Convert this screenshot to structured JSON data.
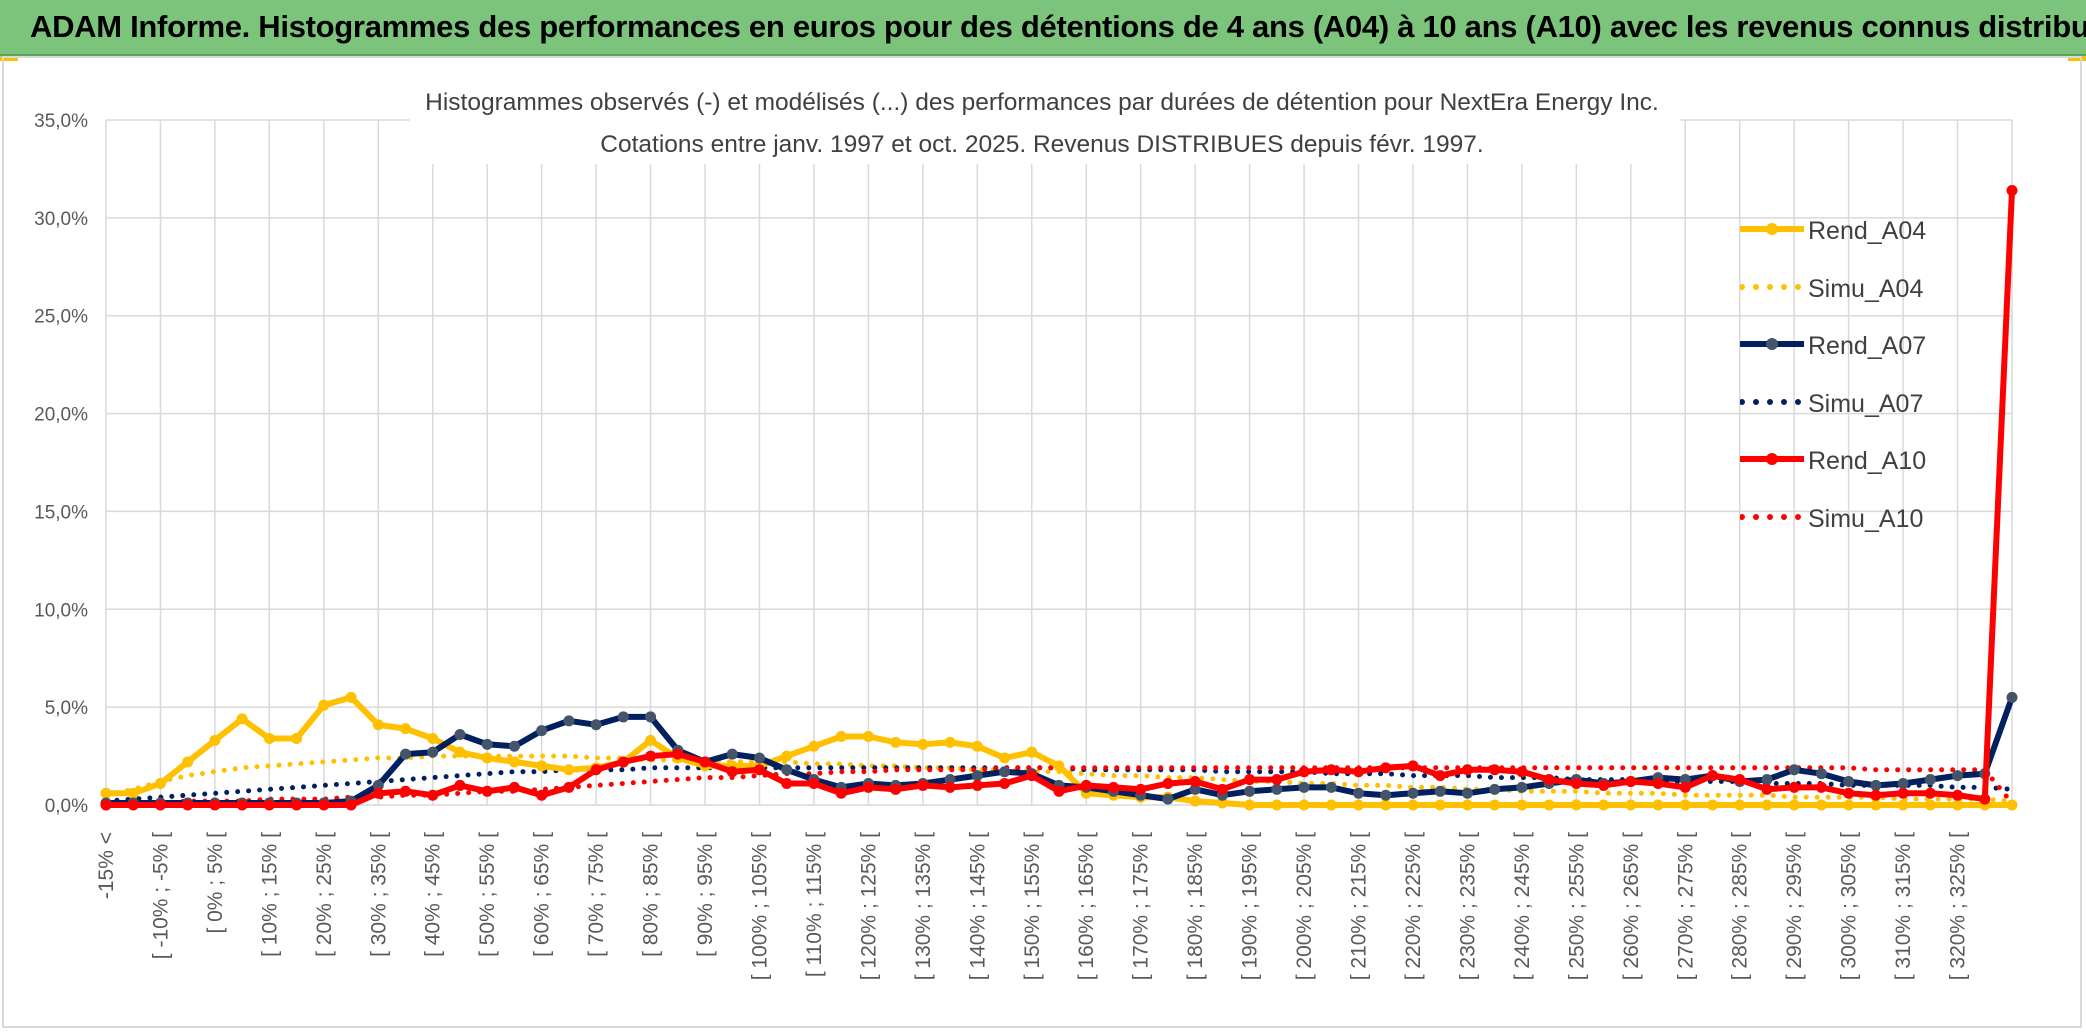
{
  "banner": {
    "title": "ADAM Informe. Histogrammes des performances en euros pour des détentions de 4 ans (A04) à 10 ans (A10) avec les revenus connus distribués",
    "background": "#7cc47c"
  },
  "chart_data": {
    "type": "line",
    "title": "Histogrammes observés (-) et modélisés (...) des performances par durées de détention pour NextEra Energy Inc.",
    "subtitle": "Cotations entre janv. 1997 et oct. 2025. Revenus DISTRIBUES depuis févr. 1997.",
    "xlabel": "",
    "ylabel": "",
    "ylim": [
      0,
      35
    ],
    "y_ticks": [
      "0,0%",
      "5,0%",
      "10,0%",
      "15,0%",
      "20,0%",
      "25,0%",
      "30,0%",
      "35,0%"
    ],
    "grid": true,
    "legend_position": "right",
    "categories": [
      "-15% <",
      "[ -15% ; -10% [",
      "[ -10% ; -5% [",
      "[ -5% ; 0% [",
      "[ 0% ; 5% [",
      "[ 5% ; 10% [",
      "[ 10% ; 15% [",
      "[ 15% ; 20% [",
      "[ 20% ; 25% [",
      "[ 25% ; 30% [",
      "[ 30% ; 35% [",
      "[ 35% ; 40% [",
      "[ 40% ; 45% [",
      "[ 45% ; 50% [",
      "[ 50% ; 55% [",
      "[ 55% ; 60% [",
      "[ 60% ; 65% [",
      "[ 65% ; 70% [",
      "[ 70% ; 75% [",
      "[ 75% ; 80% [",
      "[ 80% ; 85% [",
      "[ 85% ; 90% [",
      "[ 90% ; 95% [",
      "[ 95% ; 100% [",
      "[ 100% ; 105% [",
      "[ 105% ; 110% [",
      "[ 110% ; 115% [",
      "[ 115% ; 120% [",
      "[ 120% ; 125% [",
      "[ 125% ; 130% [",
      "[ 130% ; 135% [",
      "[ 135% ; 140% [",
      "[ 140% ; 145% [",
      "[ 145% ; 150% [",
      "[ 150% ; 155% [",
      "[ 155% ; 160% [",
      "[ 160% ; 165% [",
      "[ 165% ; 170% [",
      "[ 170% ; 175% [",
      "[ 175% ; 180% [",
      "[ 180% ; 185% [",
      "[ 185% ; 190% [",
      "[ 190% ; 195% [",
      "[ 195% ; 200% [",
      "[ 200% ; 205% [",
      "[ 205% ; 210% [",
      "[ 210% ; 215% [",
      "[ 215% ; 220% [",
      "[ 220% ; 225% [",
      "[ 225% ; 230% [",
      "[ 230% ; 235% [",
      "[ 235% ; 240% [",
      "[ 240% ; 245% [",
      "[ 245% ; 250% [",
      "[ 250% ; 255% [",
      "[ 255% ; 260% [",
      "[ 260% ; 265% [",
      "[ 265% ; 270% [",
      "[ 270% ; 275% [",
      "[ 275% ; 280% [",
      "[ 280% ; 285% [",
      "[ 285% ; 290% [",
      "[ 290% ; 295% [",
      "[ 295% ; 300% [",
      "[ 300% ; 305% [",
      "[ 305% ; 310% [",
      "[ 310% ; 315% [",
      "[ 315% ; 320% [",
      "[ 320% ; 325% [",
      "[ 325% ; 330% [",
      "330% <"
    ],
    "visible_tick_labels": [
      "-15% <",
      "[ -10% ; -5% [",
      "[ 0% ; 5% [",
      "[ 10% ; 15% [",
      "[ 20% ; 25% [",
      "[ 30% ; 35% [",
      "[ 40% ; 45% [",
      "[ 50% ; 55% [",
      "[ 60% ; 65% [",
      "[ 70% ; 75% [",
      "[ 80% ; 85% [",
      "[ 90% ; 95% [",
      "[ 100% ; 105% [",
      "[ 110% ; 115% [",
      "[ 120% ; 125% [",
      "[ 130% ; 135% [",
      "[ 140% ; 145% [",
      "[ 150% ; 155% [",
      "[ 160% ; 165% [",
      "[ 170% ; 175% [",
      "[ 180% ; 185% [",
      "[ 190% ; 195% [",
      "[ 200% ; 205% [",
      "[ 210% ; 215% [",
      "[ 220% ; 225% [",
      "[ 230% ; 235% [",
      "[ 240% ; 245% [",
      "[ 250% ; 255% [",
      "[ 260% ; 265% [",
      "[ 270% ; 275% [",
      "[ 280% ; 285% [",
      "[ 290% ; 295% [",
      "[ 300% ; 305% [",
      "[ 310% ; 315% [",
      "[ 320% ; 325% ["
    ],
    "series": [
      {
        "name": "Rend_A04",
        "style": "solid",
        "color": "#ffc000",
        "values": [
          0.6,
          0.6,
          1.1,
          2.2,
          3.3,
          4.4,
          3.4,
          3.4,
          5.1,
          5.5,
          4.1,
          3.9,
          3.4,
          2.7,
          2.4,
          2.2,
          2.0,
          1.8,
          1.9,
          2.2,
          3.3,
          2.4,
          2.0,
          2.0,
          2.0,
          2.5,
          3.0,
          3.5,
          3.5,
          3.2,
          3.1,
          3.2,
          3.0,
          2.4,
          2.7,
          2.0,
          0.6,
          0.5,
          0.4,
          0.4,
          0.2,
          0.1,
          0.0,
          0.0,
          0.0,
          0.0,
          0.0,
          0.0,
          0.0,
          0.0,
          0.0,
          0.0,
          0.0,
          0.0,
          0.0,
          0.0,
          0.0,
          0.0,
          0.0,
          0.0,
          0.0,
          0.0,
          0.0,
          0.0,
          0.0,
          0.0,
          0.0,
          0.0,
          0.0,
          0.0,
          0.0
        ]
      },
      {
        "name": "Simu_A04",
        "style": "dotted",
        "color": "#ffc000",
        "values": [
          0.5,
          0.8,
          1.2,
          1.5,
          1.7,
          1.9,
          2.0,
          2.1,
          2.2,
          2.3,
          2.4,
          2.4,
          2.5,
          2.5,
          2.5,
          2.5,
          2.5,
          2.5,
          2.4,
          2.4,
          2.3,
          2.3,
          2.3,
          2.2,
          2.2,
          2.2,
          2.1,
          2.1,
          2.0,
          2.0,
          1.9,
          1.9,
          1.8,
          1.8,
          1.7,
          1.7,
          1.6,
          1.5,
          1.5,
          1.4,
          1.4,
          1.3,
          1.2,
          1.2,
          1.1,
          1.1,
          1.0,
          1.0,
          0.9,
          0.9,
          0.8,
          0.8,
          0.7,
          0.7,
          0.7,
          0.6,
          0.6,
          0.6,
          0.5,
          0.5,
          0.5,
          0.5,
          0.4,
          0.4,
          0.4,
          0.4,
          0.3,
          0.3,
          0.3,
          0.3,
          0.2
        ]
      },
      {
        "name": "Rend_A07",
        "style": "solid",
        "color": "#002060",
        "values": [
          0.1,
          0.1,
          0.1,
          0.1,
          0.1,
          0.1,
          0.1,
          0.1,
          0.1,
          0.2,
          1.0,
          2.6,
          2.7,
          3.6,
          3.1,
          3.0,
          3.8,
          4.3,
          4.1,
          4.5,
          4.5,
          2.8,
          2.2,
          2.6,
          2.4,
          1.8,
          1.3,
          0.9,
          1.1,
          1.0,
          1.1,
          1.3,
          1.5,
          1.7,
          1.6,
          1.0,
          0.9,
          0.7,
          0.5,
          0.3,
          0.8,
          0.5,
          0.7,
          0.8,
          0.9,
          0.9,
          0.6,
          0.5,
          0.6,
          0.7,
          0.6,
          0.8,
          0.9,
          1.1,
          1.3,
          1.1,
          1.2,
          1.4,
          1.3,
          1.5,
          1.2,
          1.3,
          1.8,
          1.6,
          1.2,
          1.0,
          1.1,
          1.3,
          1.5,
          1.6,
          5.5
        ]
      },
      {
        "name": "Simu_A07",
        "style": "dotted",
        "color": "#002060",
        "values": [
          0.2,
          0.3,
          0.4,
          0.5,
          0.6,
          0.7,
          0.8,
          0.9,
          1.0,
          1.1,
          1.2,
          1.3,
          1.4,
          1.5,
          1.6,
          1.7,
          1.7,
          1.8,
          1.8,
          1.8,
          1.9,
          1.9,
          1.9,
          1.9,
          1.9,
          1.9,
          1.9,
          1.9,
          1.9,
          1.9,
          1.9,
          1.9,
          1.9,
          1.9,
          1.9,
          1.9,
          1.8,
          1.8,
          1.8,
          1.8,
          1.8,
          1.7,
          1.7,
          1.7,
          1.7,
          1.6,
          1.6,
          1.6,
          1.5,
          1.5,
          1.5,
          1.4,
          1.4,
          1.4,
          1.3,
          1.3,
          1.3,
          1.2,
          1.2,
          1.2,
          1.2,
          1.1,
          1.1,
          1.1,
          1.0,
          1.0,
          1.0,
          1.0,
          0.9,
          0.9,
          0.8
        ]
      },
      {
        "name": "Rend_A10",
        "style": "solid",
        "color": "#ff0000",
        "values": [
          0.0,
          0.0,
          0.0,
          0.0,
          0.0,
          0.0,
          0.0,
          0.0,
          0.0,
          0.0,
          0.6,
          0.7,
          0.5,
          1.0,
          0.7,
          0.9,
          0.5,
          0.9,
          1.8,
          2.2,
          2.5,
          2.6,
          2.2,
          1.7,
          1.8,
          1.1,
          1.1,
          0.6,
          0.9,
          0.8,
          1.0,
          0.9,
          1.0,
          1.1,
          1.5,
          0.7,
          1.0,
          0.9,
          0.8,
          1.1,
          1.2,
          0.8,
          1.3,
          1.3,
          1.7,
          1.8,
          1.7,
          1.9,
          2.0,
          1.5,
          1.8,
          1.8,
          1.7,
          1.3,
          1.1,
          1.0,
          1.2,
          1.1,
          0.9,
          1.5,
          1.3,
          0.8,
          0.9,
          0.9,
          0.6,
          0.5,
          0.6,
          0.6,
          0.5,
          0.3,
          31.4
        ]
      },
      {
        "name": "Simu_A10",
        "style": "dotted",
        "color": "#ff0000",
        "values": [
          0.1,
          0.1,
          0.1,
          0.2,
          0.2,
          0.2,
          0.3,
          0.3,
          0.3,
          0.4,
          0.4,
          0.5,
          0.5,
          0.6,
          0.7,
          0.7,
          0.8,
          0.9,
          1.0,
          1.1,
          1.2,
          1.3,
          1.4,
          1.4,
          1.5,
          1.6,
          1.6,
          1.7,
          1.7,
          1.8,
          1.8,
          1.8,
          1.8,
          1.9,
          1.9,
          1.9,
          1.9,
          1.9,
          1.9,
          1.9,
          1.9,
          1.9,
          1.9,
          1.9,
          1.9,
          1.9,
          1.9,
          1.9,
          1.9,
          1.9,
          1.9,
          1.9,
          1.9,
          1.9,
          1.9,
          1.9,
          1.9,
          1.9,
          1.9,
          1.9,
          1.9,
          1.9,
          1.9,
          1.9,
          1.9,
          1.8,
          1.8,
          1.8,
          1.8,
          1.8,
          0.1
        ]
      }
    ]
  }
}
